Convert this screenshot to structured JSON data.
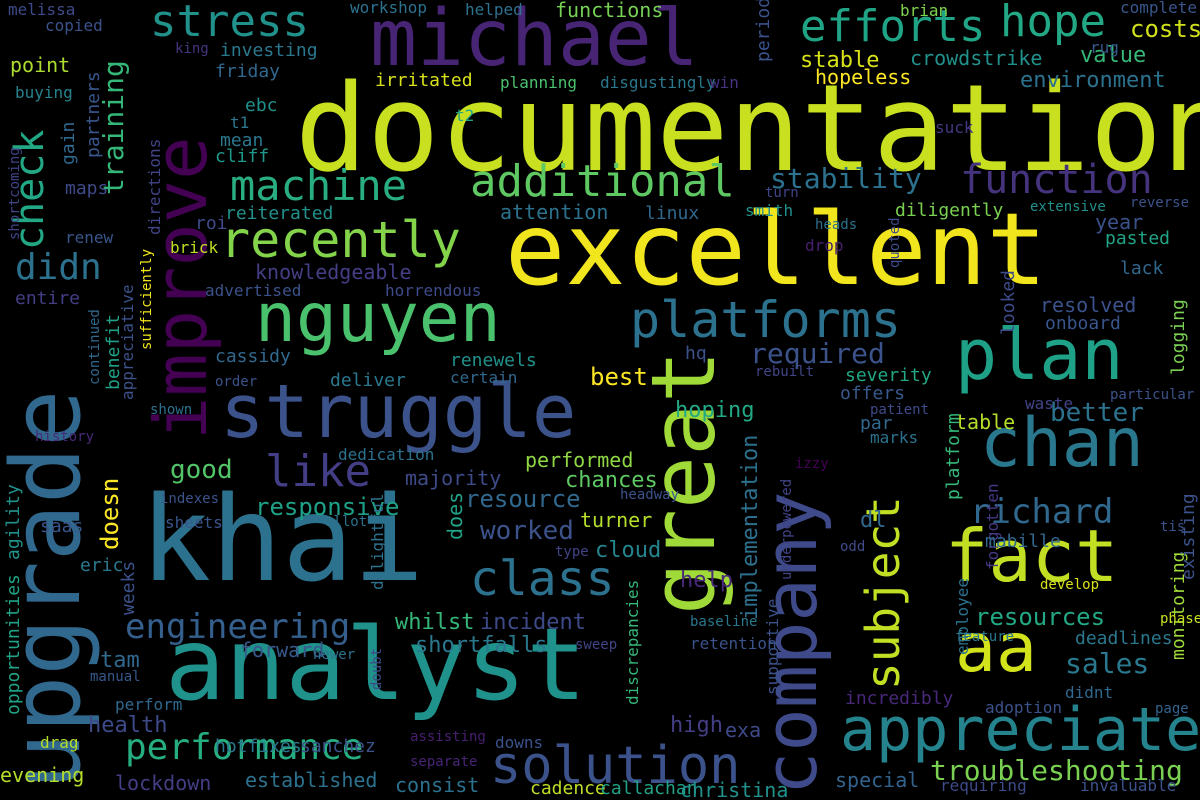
{
  "words": [
    {
      "text": "documentation",
      "color": "#c8e020"
    },
    {
      "text": "khai",
      "color": "#2c728e"
    },
    {
      "text": "excellent",
      "color": "#f1e51d"
    },
    {
      "text": "analyst",
      "color": "#20928c"
    },
    {
      "text": "upgrade",
      "color": "#31688e"
    },
    {
      "text": "great",
      "color": "#a0da39"
    },
    {
      "text": "michael",
      "color": "#482475"
    },
    {
      "text": "improve",
      "color": "#440154"
    },
    {
      "text": "struggle",
      "color": "#3b528b"
    },
    {
      "text": "nguyen",
      "color": "#4ac16d"
    },
    {
      "text": "company",
      "color": "#3e4a89"
    },
    {
      "text": "fact",
      "color": "#c2df23"
    },
    {
      "text": "plan",
      "color": "#1fa188"
    },
    {
      "text": "chan",
      "color": "#2a788e"
    },
    {
      "text": "aa",
      "color": "#d2e21b"
    },
    {
      "text": "appreciate",
      "color": "#25838e"
    },
    {
      "text": "solution",
      "color": "#3b528b"
    },
    {
      "text": "platforms",
      "color": "#2c728e"
    },
    {
      "text": "recently",
      "color": "#84d44b"
    },
    {
      "text": "machine",
      "color": "#28ae80"
    },
    {
      "text": "additional",
      "color": "#5ec962"
    },
    {
      "text": "stress",
      "color": "#21918c"
    },
    {
      "text": "hope",
      "color": "#22a884"
    },
    {
      "text": "efforts",
      "color": "#20a486"
    },
    {
      "text": "class",
      "color": "#2c728e"
    },
    {
      "text": "like",
      "color": "#433e85"
    },
    {
      "text": "performance",
      "color": "#26ad81"
    },
    {
      "text": "engineering",
      "color": "#355f8d"
    },
    {
      "text": "function",
      "color": "#46337e"
    },
    {
      "text": "subject",
      "color": "#c2df23"
    },
    {
      "text": "troubleshooting",
      "color": "#7ad151"
    },
    {
      "text": "check",
      "color": "#22a884"
    },
    {
      "text": "didn",
      "color": "#2c728e"
    },
    {
      "text": "richard",
      "color": "#31688e"
    },
    {
      "text": "sales",
      "color": "#2a788e"
    },
    {
      "text": "resources",
      "color": "#22a884"
    },
    {
      "text": "training",
      "color": "#35b779"
    },
    {
      "text": "stability",
      "color": "#2c728e"
    },
    {
      "text": "required",
      "color": "#3b528b"
    },
    {
      "text": "resource",
      "color": "#31688e"
    },
    {
      "text": "worked",
      "color": "#3b528b"
    },
    {
      "text": "responsive",
      "color": "#1fa188"
    },
    {
      "text": "good",
      "color": "#52c569"
    },
    {
      "text": "doesn",
      "color": "#fde725"
    },
    {
      "text": "does",
      "color": "#20a386"
    },
    {
      "text": "better",
      "color": "#2c728e"
    },
    {
      "text": "chances",
      "color": "#5ec962"
    },
    {
      "text": "performed",
      "color": "#8fd744"
    },
    {
      "text": "best",
      "color": "#fde725"
    },
    {
      "text": "hoping",
      "color": "#22a884"
    },
    {
      "text": "incident",
      "color": "#3e4a89"
    },
    {
      "text": "whilst",
      "color": "#35b779"
    },
    {
      "text": "shortfalls",
      "color": "#2a788e"
    },
    {
      "text": "forward",
      "color": "#38588c"
    },
    {
      "text": "tam",
      "color": "#31688e"
    },
    {
      "text": "help",
      "color": "#482878"
    },
    {
      "text": "cloud",
      "color": "#25858e"
    },
    {
      "text": "turner",
      "color": "#b5de2b"
    },
    {
      "text": "implementation",
      "color": "#2d708e"
    },
    {
      "text": "established",
      "color": "#2c728e"
    },
    {
      "text": "consist",
      "color": "#2c728e"
    },
    {
      "text": "lockdown",
      "color": "#433e85"
    },
    {
      "text": "evening",
      "color": "#b5de2b"
    },
    {
      "text": "cadence",
      "color": "#bddf26"
    },
    {
      "text": "callachan",
      "color": "#20a386"
    },
    {
      "text": "christina",
      "color": "#21918c"
    },
    {
      "text": "special",
      "color": "#33638d"
    },
    {
      "text": "requiring",
      "color": "#3e4a89"
    },
    {
      "text": "invaluable",
      "color": "#3b528b"
    },
    {
      "text": "monitoring",
      "color": "#a0da39"
    },
    {
      "text": "stable",
      "color": "#d8e219"
    },
    {
      "text": "crowdstrike",
      "color": "#21918c"
    },
    {
      "text": "environment",
      "color": "#2c728e"
    },
    {
      "text": "hopeless",
      "color": "#fde725"
    },
    {
      "text": "costs",
      "color": "#d0e11c"
    },
    {
      "text": "value",
      "color": "#35b779"
    },
    {
      "text": "complete",
      "color": "#39568c"
    },
    {
      "text": "brian",
      "color": "#7fd34e"
    },
    {
      "text": "rug",
      "color": "#38598c"
    },
    {
      "text": "functions",
      "color": "#75d054"
    },
    {
      "text": "workshop",
      "color": "#2c728e"
    },
    {
      "text": "helped",
      "color": "#2c728e"
    },
    {
      "text": "melissa",
      "color": "#3e4a89"
    },
    {
      "text": "copied",
      "color": "#3b528b"
    },
    {
      "text": "king",
      "color": "#463480"
    },
    {
      "text": "investing",
      "color": "#2a788e"
    },
    {
      "text": "friday",
      "color": "#31688e"
    },
    {
      "text": "point",
      "color": "#addc30"
    },
    {
      "text": "buying",
      "color": "#25838e"
    },
    {
      "text": "irritated",
      "color": "#d8e219"
    },
    {
      "text": "planning",
      "color": "#4ac16d"
    },
    {
      "text": "disgustingly",
      "color": "#2a788e"
    },
    {
      "text": "win",
      "color": "#46327e"
    },
    {
      "text": "periods",
      "color": "#3b528b"
    },
    {
      "text": "ebc",
      "color": "#21918c"
    },
    {
      "text": "t1",
      "color": "#2a788e"
    },
    {
      "text": "t2",
      "color": "#20a386"
    },
    {
      "text": "mean",
      "color": "#2a788e"
    },
    {
      "text": "cliff",
      "color": "#1f9a8a"
    },
    {
      "text": "suck",
      "color": "#453781"
    },
    {
      "text": "reiterated",
      "color": "#21918c"
    },
    {
      "text": "attention",
      "color": "#2c728e"
    },
    {
      "text": "linux",
      "color": "#31688e"
    },
    {
      "text": "smith",
      "color": "#21918c"
    },
    {
      "text": "turn",
      "color": "#414487"
    },
    {
      "text": "diligently",
      "color": "#7ad151"
    },
    {
      "text": "year",
      "color": "#3b528b"
    },
    {
      "text": "pasted",
      "color": "#20a386"
    },
    {
      "text": "extensive",
      "color": "#21918c"
    },
    {
      "text": "reverse",
      "color": "#3b528b"
    },
    {
      "text": "heads",
      "color": "#2c728e"
    },
    {
      "text": "quoted",
      "color": "#3e4a89"
    },
    {
      "text": "drop",
      "color": "#481f70"
    },
    {
      "text": "lack",
      "color": "#31688e"
    },
    {
      "text": "knowledgeable",
      "color": "#433e85"
    },
    {
      "text": "advertised",
      "color": "#3b528b"
    },
    {
      "text": "horrendous",
      "color": "#3e4a89"
    },
    {
      "text": "brick",
      "color": "#c2df23"
    },
    {
      "text": "directions",
      "color": "#414487"
    },
    {
      "text": "roi",
      "color": "#3e4a89"
    },
    {
      "text": "renew",
      "color": "#39568c"
    },
    {
      "text": "maps",
      "color": "#3e4a89"
    },
    {
      "text": "entire",
      "color": "#433e85"
    },
    {
      "text": "gain",
      "color": "#31688e"
    },
    {
      "text": "partners",
      "color": "#39568c"
    },
    {
      "text": "shortcoming",
      "color": "#414487"
    },
    {
      "text": "sufficiently",
      "color": "#f1e51d"
    },
    {
      "text": "appreciative",
      "color": "#3b528b"
    },
    {
      "text": "benefit",
      "color": "#1fa188"
    },
    {
      "text": "continued",
      "color": "#31688e"
    },
    {
      "text": "cassidy",
      "color": "#31688e"
    },
    {
      "text": "order",
      "color": "#3b528b"
    },
    {
      "text": "deliver",
      "color": "#2a788e"
    },
    {
      "text": "renewels",
      "color": "#21918c"
    },
    {
      "text": "certain",
      "color": "#31688e"
    },
    {
      "text": "hq",
      "color": "#3b528b"
    },
    {
      "text": "rebuilt",
      "color": "#414487"
    },
    {
      "text": "severity",
      "color": "#22a884"
    },
    {
      "text": "offers",
      "color": "#38598c"
    },
    {
      "text": "par",
      "color": "#31688e"
    },
    {
      "text": "table",
      "color": "#b5de2b"
    },
    {
      "text": "resolved",
      "color": "#3b528b"
    },
    {
      "text": "onboard",
      "color": "#39568c"
    },
    {
      "text": "looked",
      "color": "#3e4a89"
    },
    {
      "text": "logging",
      "color": "#7ad151"
    },
    {
      "text": "particular",
      "color": "#3b528b"
    },
    {
      "text": "waste",
      "color": "#414487"
    },
    {
      "text": "patient",
      "color": "#3e4a89"
    },
    {
      "text": "marks",
      "color": "#2c728e"
    },
    {
      "text": "platform",
      "color": "#35b779"
    },
    {
      "text": "forgotten",
      "color": "#443983"
    },
    {
      "text": "employee",
      "color": "#2c728e"
    },
    {
      "text": "dl",
      "color": "#31688e"
    },
    {
      "text": "mabille",
      "color": "#31688e"
    },
    {
      "text": "existing",
      "color": "#3b528b"
    },
    {
      "text": "tis",
      "color": "#3b528b"
    },
    {
      "text": "phase",
      "color": "#c8e020"
    },
    {
      "text": "deadlines",
      "color": "#2a788e"
    },
    {
      "text": "didnt",
      "color": "#31688e"
    },
    {
      "text": "page",
      "color": "#33638d"
    },
    {
      "text": "adoption",
      "color": "#3b528b"
    },
    {
      "text": "incredibly",
      "color": "#482878"
    },
    {
      "text": "feature",
      "color": "#2a788e"
    },
    {
      "text": "develop",
      "color": "#d8e219"
    },
    {
      "text": "odd",
      "color": "#3e4a89"
    },
    {
      "text": "izzy",
      "color": "#440154"
    },
    {
      "text": "underpowered",
      "color": "#414487"
    },
    {
      "text": "supportive",
      "color": "#3b528b"
    },
    {
      "text": "retention",
      "color": "#3b528b"
    },
    {
      "text": "baseline",
      "color": "#2a788e"
    },
    {
      "text": "discrepancies",
      "color": "#35b779"
    },
    {
      "text": "headway",
      "color": "#3b528b"
    },
    {
      "text": "high",
      "color": "#433e85"
    },
    {
      "text": "exa",
      "color": "#3e4a89"
    },
    {
      "text": "downs",
      "color": "#3b528b"
    },
    {
      "text": "separate",
      "color": "#482475"
    },
    {
      "text": "assisting",
      "color": "#481f70"
    },
    {
      "text": "sanchez",
      "color": "#3b528b"
    },
    {
      "text": "hotfixes",
      "color": "#2a788e"
    },
    {
      "text": "doubt",
      "color": "#3e4a89"
    },
    {
      "text": "newer",
      "color": "#2c728e"
    },
    {
      "text": "sweep",
      "color": "#414487"
    },
    {
      "text": "type",
      "color": "#414487"
    },
    {
      "text": "delightful",
      "color": "#2c728e"
    },
    {
      "text": "allot",
      "color": "#2c728e"
    },
    {
      "text": "sheets",
      "color": "#39568c"
    },
    {
      "text": "indexes",
      "color": "#3b528b"
    },
    {
      "text": "dedication",
      "color": "#2c728e"
    },
    {
      "text": "majority",
      "color": "#3e4a89"
    },
    {
      "text": "saas",
      "color": "#39568c"
    },
    {
      "text": "eric",
      "color": "#2a788e"
    },
    {
      "text": "weeks",
      "color": "#3b528b"
    },
    {
      "text": "manual",
      "color": "#38588c"
    },
    {
      "text": "perform",
      "color": "#31688e"
    },
    {
      "text": "health",
      "color": "#3e4a89"
    },
    {
      "text": "drag",
      "color": "#b5de2b"
    },
    {
      "text": "opportunities",
      "color": "#20a386"
    },
    {
      "text": "agility",
      "color": "#21918c"
    },
    {
      "text": "history",
      "color": "#482878"
    },
    {
      "text": "shown",
      "color": "#2c728e"
    }
  ]
}
